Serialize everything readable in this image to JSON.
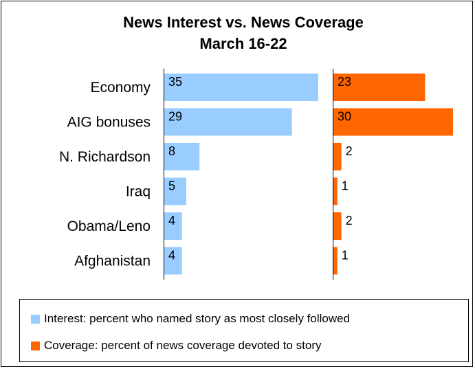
{
  "chart_data": {
    "type": "bar",
    "title": "News Interest vs. News Coverage",
    "subtitle": "March 16-22",
    "categories": [
      "Economy",
      "AIG bonuses",
      "N. Richardson",
      "Iraq",
      "Obama/Leno",
      "Afghanistan"
    ],
    "series": [
      {
        "name": "Interest: percent who named story as most closely followed",
        "values": [
          35,
          29,
          8,
          5,
          4,
          4
        ],
        "color": "#99ccff"
      },
      {
        "name": "Coverage: percent of news coverage devoted to story",
        "values": [
          23,
          30,
          2,
          1,
          2,
          1
        ],
        "color": "#ff6600"
      }
    ],
    "legend_position": "bottom"
  }
}
